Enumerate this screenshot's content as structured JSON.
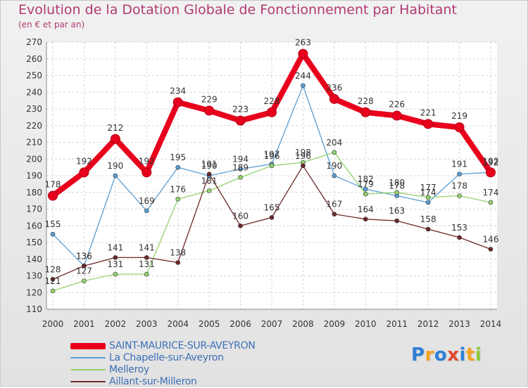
{
  "title": "Evolution de la Dotation Globale de Fonctionnement par Habitant",
  "subtitle": "(en € et par an)",
  "logo": {
    "text": "Proxiti",
    "colors": [
      "#2f7fd4",
      "#f3a31b",
      "#2f7fd4",
      "#e2492f",
      "#2f7fd4",
      "#f3a31b",
      "#8dc63f"
    ]
  },
  "chart_data": {
    "type": "line",
    "x": [
      "2000",
      "2001",
      "2002",
      "2003",
      "2004",
      "2005",
      "2006",
      "2007",
      "2008",
      "2009",
      "2010",
      "2011",
      "2012",
      "2013",
      "2014"
    ],
    "ylim": [
      110,
      270
    ],
    "yticks": [
      110,
      120,
      130,
      140,
      150,
      160,
      170,
      180,
      190,
      200,
      210,
      220,
      230,
      240,
      250,
      260,
      270
    ],
    "grid": true,
    "legend_placement": "bottom-left",
    "series": [
      {
        "name": "SAINT-MAURICE-SUR-AVEYRON",
        "color": "#e8001c",
        "values": [
          178,
          192,
          212,
          192,
          234,
          229,
          223,
          228,
          263,
          236,
          228,
          226,
          221,
          219,
          192
        ]
      },
      {
        "name": "La Chapelle-sur-Aveyron",
        "color": "#5a9fd4",
        "values": [
          155,
          136,
          190,
          169,
          195,
          190,
          194,
          197,
          244,
          190,
          182,
          178,
          174,
          191,
          192
        ]
      },
      {
        "name": "Melleroy",
        "color": "#92d36e",
        "values": [
          121,
          127,
          131,
          131,
          176,
          181,
          189,
          196,
          198,
          204,
          179,
          180,
          177,
          178,
          174
        ]
      },
      {
        "name": "Aillant-sur-Milleron",
        "color": "#6e2828",
        "values": [
          128,
          136,
          141,
          141,
          138,
          191,
          160,
          165,
          196,
          167,
          164,
          163,
          158,
          153,
          146
        ]
      }
    ]
  }
}
